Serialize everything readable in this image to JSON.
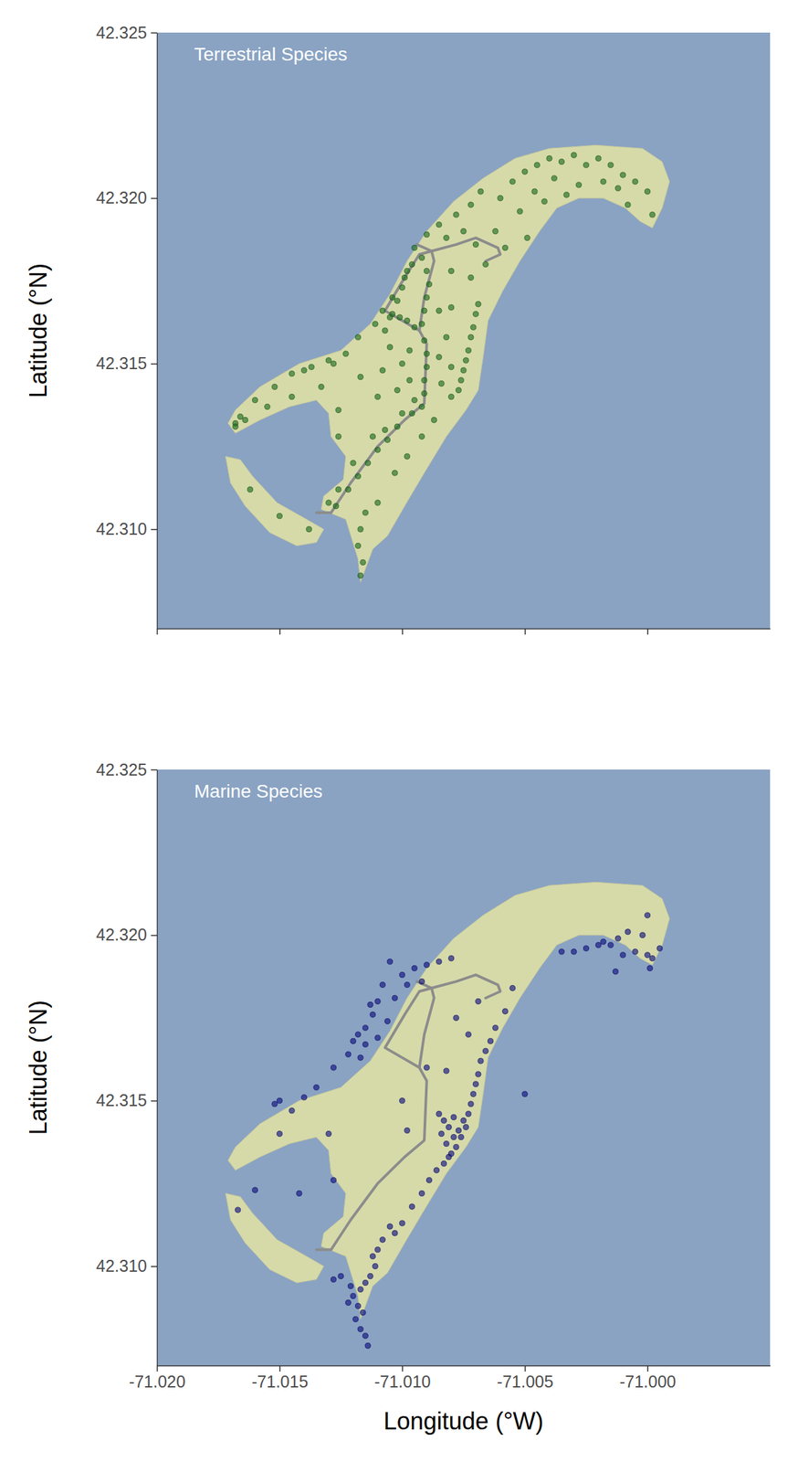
{
  "chart_data": [
    {
      "type": "scatter",
      "title": "Terrestrial Species",
      "y_label": "Latitude (°N)",
      "xlim": [
        -71.02,
        -70.995
      ],
      "ylim": [
        42.307,
        42.325
      ],
      "xticks": [
        {
          "value": -71.02,
          "label": "-71.020"
        },
        -71.015,
        {
          "value": -71.01,
          "label": "-71.010"
        },
        -71.005,
        {
          "value": -71,
          "label": "-71.000"
        }
      ],
      "yticks": [
        {
          "value": 42.31,
          "label": "42.310"
        },
        42.315,
        {
          "value": 42.32,
          "label": "42.320"
        },
        42.325
      ],
      "tick_labels": "y",
      "color": "#1a6b1a",
      "marker": "circle",
      "land": [
        {
          "x": [
            -71.004,
            -71.0021,
            -71.0002,
            -70.9994,
            -70.9991,
            -70.9994,
            -70.9998,
            -71.0003,
            -71.0009,
            -71.0018,
            -71.0028,
            -71.0037,
            -71.0044,
            -71.0052,
            -71.0059,
            -71.0065,
            -71.0067,
            -71.0069,
            -71.0074,
            -71.0082,
            -71.0091,
            -71.0099,
            -71.0106,
            -71.0112,
            -71.0115,
            -71.0117,
            -71.0118,
            -71.0123,
            -71.0133,
            -71.0132,
            -71.0124,
            -71.0123,
            -71.0129,
            -71.013,
            -71.0135,
            -71.0146,
            -71.0158,
            -71.0168,
            -71.0171,
            -71.0168,
            -71.0158,
            -71.0142,
            -71.0125,
            -71.0113,
            -71.0105,
            -71.0098,
            -71.009,
            -71.0079,
            -71.0067,
            -71.0054
          ],
          "y": [
            42.3215,
            42.3216,
            42.3215,
            42.3211,
            42.3205,
            42.3197,
            42.3191,
            42.3193,
            42.3197,
            42.32,
            42.32,
            42.3197,
            42.319,
            42.3181,
            42.3172,
            42.3163,
            42.3152,
            42.3142,
            42.3136,
            42.3128,
            42.3117,
            42.3107,
            42.3098,
            42.3094,
            42.3088,
            42.3084,
            42.3091,
            42.3103,
            42.3106,
            42.311,
            42.3115,
            42.3122,
            42.3128,
            42.3135,
            42.3139,
            42.3137,
            42.3133,
            42.3129,
            42.3132,
            42.3136,
            42.3143,
            42.315,
            42.3154,
            42.3162,
            42.3171,
            42.3181,
            42.319,
            42.3199,
            42.3206,
            42.3212
          ]
        },
        {
          "x": [
            -71.0172,
            -71.0166,
            -71.0161,
            -71.0151,
            -71.0139,
            -71.0132,
            -71.0135,
            -71.0143,
            -71.0154,
            -71.0164,
            -71.017
          ],
          "y": [
            42.3122,
            42.3121,
            42.3116,
            42.3108,
            42.3103,
            42.31,
            42.3096,
            42.3095,
            42.3099,
            42.3107,
            42.3114
          ]
        }
      ],
      "trails": [
        {
          "x": [
            -71.0135,
            -71.0129,
            -71.0121,
            -71.011,
            -71.0099,
            -71.0091,
            -71.009,
            -71.0093,
            -71.0091,
            -71.0087,
            -71.0088,
            -71.0094
          ],
          "y": [
            42.3105,
            42.3105,
            42.3114,
            42.3125,
            42.3133,
            42.3138,
            42.3156,
            42.316,
            42.317,
            42.3181,
            42.3184,
            42.3186
          ]
        },
        {
          "x": [
            -71.0093,
            -71.0107,
            -71.0099,
            -71.0093,
            -71.0088
          ],
          "y": [
            42.316,
            42.3166,
            42.3176,
            42.3183,
            42.3184
          ]
        },
        {
          "x": [
            -71.0088,
            -71.0078,
            -71.007,
            -71.0061,
            -71.006,
            -71.0066
          ],
          "y": [
            42.3184,
            42.3186,
            42.3188,
            42.3185,
            42.3183,
            42.3181
          ]
        }
      ],
      "x": [
        -71.006,
        -71.0055,
        -71.005,
        -71.0045,
        -71.004,
        -71.0035,
        -71.003,
        -71.0025,
        -71.002,
        -71.0015,
        -71.001,
        -71.0005,
        -71.0,
        -70.9998,
        -71.0008,
        -71.0012,
        -71.0018,
        -71.0028,
        -71.0038,
        -71.0046,
        -71.0052,
        -71.0042,
        -71.0033,
        -71.0062,
        -71.0058,
        -71.0049,
        -71.0068,
        -71.0072,
        -71.0078,
        -71.0085,
        -71.009,
        -71.0095,
        -71.0096,
        -71.0099,
        -71.0098,
        -71.0092,
        -71.0082,
        -71.0075,
        -71.007,
        -71.0066,
        -71.0072,
        -71.008,
        -71.0104,
        -71.0108,
        -71.0111,
        -71.0107,
        -71.0105,
        -71.0118,
        -71.0123,
        -71.013,
        -71.0137,
        -71.0145,
        -71.0152,
        -71.016,
        -71.0166,
        -71.0168,
        -71.014,
        -71.0128,
        -71.0133,
        -71.0104,
        -71.0101,
        -71.0098,
        -71.0095,
        -71.0102,
        -71.01,
        -71.009,
        -71.0089,
        -71.009,
        -71.0091,
        -71.0092,
        -71.0091,
        -71.009,
        -71.009,
        -71.0091,
        -71.0091,
        -71.0092,
        -71.007,
        -71.0071,
        -71.0072,
        -71.0073,
        -71.0074,
        -71.0075,
        -71.0076,
        -71.0077,
        -71.0069,
        -71.008,
        -71.0085,
        -71.0082,
        -71.0085,
        -71.008,
        -71.0097,
        -71.01,
        -71.0105,
        -71.0097,
        -71.0102,
        -71.0108,
        -71.0084,
        -71.008,
        -71.0095,
        -71.01,
        -71.011,
        -71.0117,
        -71.0096,
        -71.0102,
        -71.0106,
        -71.011,
        -71.0114,
        -71.0118,
        -71.0122,
        -71.0107,
        -71.0112,
        -71.0087,
        -71.0092,
        -71.0098,
        -71.0103,
        -71.011,
        -71.0115,
        -71.0117,
        -71.0118,
        -71.0116,
        -71.0117,
        -71.0127,
        -71.013,
        -71.0126,
        -71.012,
        -71.015,
        -71.0162,
        -71.0168,
        -71.0164,
        -71.0138,
        -71.0145,
        -71.0155,
        -71.0126,
        -71.0126
      ],
      "y": [
        42.32,
        42.3205,
        42.3208,
        42.321,
        42.3212,
        42.3211,
        42.3213,
        42.321,
        42.3212,
        42.321,
        42.3207,
        42.3205,
        42.3202,
        42.3195,
        42.3198,
        42.3203,
        42.3205,
        42.3204,
        42.3206,
        42.3202,
        42.3196,
        42.3199,
        42.3201,
        42.319,
        42.3185,
        42.3188,
        42.3202,
        42.3198,
        42.3195,
        42.3192,
        42.3189,
        42.3185,
        42.318,
        42.3176,
        42.3178,
        42.3182,
        42.3188,
        42.319,
        42.3186,
        42.318,
        42.3176,
        42.3178,
        42.317,
        42.3166,
        42.3162,
        42.316,
        42.3164,
        42.3158,
        42.3153,
        42.3151,
        42.3149,
        42.3147,
        42.3143,
        42.3139,
        42.3134,
        42.3132,
        42.3148,
        42.315,
        42.3143,
        42.3165,
        42.3164,
        42.3163,
        42.3161,
        42.3169,
        42.3173,
        42.3178,
        42.3174,
        42.317,
        42.3166,
        42.3162,
        42.3157,
        42.3153,
        42.3149,
        42.3145,
        42.3141,
        42.3137,
        42.3165,
        42.3161,
        42.3158,
        42.3154,
        42.3151,
        42.3148,
        42.3145,
        42.3142,
        42.3168,
        42.3167,
        42.3166,
        42.3158,
        42.3152,
        42.3149,
        42.3154,
        42.315,
        42.3155,
        42.3145,
        42.3142,
        42.3148,
        42.3144,
        42.314,
        42.3139,
        42.3135,
        42.314,
        42.3146,
        42.3135,
        42.3131,
        42.3127,
        42.3124,
        42.312,
        42.3116,
        42.3112,
        42.313,
        42.3128,
        42.3133,
        42.3128,
        42.3122,
        42.3117,
        42.3108,
        42.3105,
        42.31,
        42.3095,
        42.309,
        42.3086,
        42.3107,
        42.3108,
        42.3112,
        42.312,
        42.3104,
        42.3112,
        42.3131,
        42.3133,
        42.31,
        42.314,
        42.3137,
        42.3128,
        42.3136
      ]
    },
    {
      "type": "scatter",
      "title": "Marine Species",
      "x_label": "Longitude (°W)",
      "y_label": "Latitude (°N)",
      "xlim": [
        -71.02,
        -70.995
      ],
      "ylim": [
        42.307,
        42.325
      ],
      "xticks": [
        {
          "value": -71.02,
          "label": "-71.020"
        },
        -71.015,
        {
          "value": -71.01,
          "label": "-71.010"
        },
        -71.005,
        {
          "value": -71,
          "label": "-71.000"
        }
      ],
      "yticks": [
        {
          "value": 42.31,
          "label": "42.310"
        },
        42.315,
        {
          "value": 42.32,
          "label": "42.320"
        },
        42.325
      ],
      "color": "#0b0b80",
      "marker": "circle",
      "land": [
        {
          "x": [
            -71.004,
            -71.0021,
            -71.0002,
            -70.9994,
            -70.9991,
            -70.9994,
            -70.9998,
            -71.0003,
            -71.0009,
            -71.0018,
            -71.0028,
            -71.0037,
            -71.0044,
            -71.0052,
            -71.0059,
            -71.0065,
            -71.0067,
            -71.0069,
            -71.0074,
            -71.0082,
            -71.0091,
            -71.0099,
            -71.0106,
            -71.0112,
            -71.0115,
            -71.0117,
            -71.0118,
            -71.0123,
            -71.0133,
            -71.0132,
            -71.0124,
            -71.0123,
            -71.0129,
            -71.013,
            -71.0135,
            -71.0146,
            -71.0158,
            -71.0168,
            -71.0171,
            -71.0168,
            -71.0158,
            -71.0142,
            -71.0125,
            -71.0113,
            -71.0105,
            -71.0098,
            -71.009,
            -71.0079,
            -71.0067,
            -71.0054
          ],
          "y": [
            42.3215,
            42.3216,
            42.3215,
            42.3211,
            42.3205,
            42.3197,
            42.3191,
            42.3193,
            42.3197,
            42.32,
            42.32,
            42.3197,
            42.319,
            42.3181,
            42.3172,
            42.3163,
            42.3152,
            42.3142,
            42.3136,
            42.3128,
            42.3117,
            42.3107,
            42.3098,
            42.3094,
            42.3088,
            42.3084,
            42.3091,
            42.3103,
            42.3106,
            42.311,
            42.3115,
            42.3122,
            42.3128,
            42.3135,
            42.3139,
            42.3137,
            42.3133,
            42.3129,
            42.3132,
            42.3136,
            42.3143,
            42.315,
            42.3154,
            42.3162,
            42.3171,
            42.3181,
            42.319,
            42.3199,
            42.3206,
            42.3212
          ]
        },
        {
          "x": [
            -71.0172,
            -71.0166,
            -71.0161,
            -71.0151,
            -71.0139,
            -71.0132,
            -71.0135,
            -71.0143,
            -71.0154,
            -71.0164,
            -71.017
          ],
          "y": [
            42.3122,
            42.3121,
            42.3116,
            42.3108,
            42.3103,
            42.31,
            42.3096,
            42.3095,
            42.3099,
            42.3107,
            42.3114
          ]
        }
      ],
      "trails": [
        {
          "x": [
            -71.0135,
            -71.0129,
            -71.0121,
            -71.011,
            -71.0099,
            -71.0091,
            -71.009,
            -71.0093,
            -71.0091,
            -71.0087,
            -71.0088,
            -71.0094
          ],
          "y": [
            42.3105,
            42.3105,
            42.3114,
            42.3125,
            42.3133,
            42.3138,
            42.3156,
            42.316,
            42.317,
            42.3181,
            42.3184,
            42.3186
          ]
        },
        {
          "x": [
            -71.0093,
            -71.0107,
            -71.0099,
            -71.0093,
            -71.0088
          ],
          "y": [
            42.316,
            42.3166,
            42.3176,
            42.3183,
            42.3184
          ]
        },
        {
          "x": [
            -71.0088,
            -71.0078,
            -71.007,
            -71.0061,
            -71.006,
            -71.0066
          ],
          "y": [
            42.3184,
            42.3186,
            42.3188,
            42.3185,
            42.3183,
            42.3181
          ]
        }
      ],
      "x": [
        -71.0105,
        -71.01,
        -71.0095,
        -71.009,
        -71.0085,
        -71.008,
        -71.0108,
        -71.011,
        -71.0112,
        -71.0115,
        -71.0118,
        -71.012,
        -71.0115,
        -71.011,
        -71.0106,
        -71.0113,
        -71.0122,
        -71.0117,
        -71.0103,
        -71.0098,
        -71.0092,
        -71.0128,
        -71.0135,
        -71.014,
        -71.015,
        -71.0152,
        -71.0145,
        -71.0068,
        -71.0069,
        -71.007,
        -71.0071,
        -71.0072,
        -71.0073,
        -71.0075,
        -71.0077,
        -71.0079,
        -71.0081,
        -71.0083,
        -71.0084,
        -71.0082,
        -71.008,
        -71.0078,
        -71.0076,
        -71.0074,
        -71.0085,
        -71.0079,
        -71.0081,
        -71.0083,
        -71.0086,
        -71.0089,
        -71.0092,
        -71.0096,
        -71.01,
        -71.0103,
        -71.0066,
        -71.0064,
        -71.0062,
        -71.0073,
        -71.0069,
        -71.0058,
        -71.0055,
        -71.005,
        -71.009,
        -71.0082,
        -71.01,
        -71.0098,
        -71.0078,
        -71.003,
        -71.0025,
        -71.002,
        -71.0018,
        -71.0015,
        -71.0012,
        -71.001,
        -71.0005,
        -71.0,
        -70.9998,
        -70.9995,
        -71.0002,
        -71.0,
        -71.0008,
        -71.0035,
        -71.0013,
        -70.9999,
        -71.0105,
        -71.0108,
        -71.011,
        -71.0112,
        -71.0111,
        -71.0113,
        -71.0115,
        -71.0117,
        -71.012,
        -71.0122,
        -71.0118,
        -71.0116,
        -71.0119,
        -71.0117,
        -71.0115,
        -71.0114,
        -71.0121,
        -71.0125,
        -71.0128,
        -71.013,
        -71.0128,
        -71.016,
        -71.0167,
        -71.0142,
        -71.015
      ],
      "y": [
        42.3192,
        42.3188,
        42.319,
        42.3191,
        42.3192,
        42.3193,
        42.3185,
        42.318,
        42.3176,
        42.3172,
        42.317,
        42.3168,
        42.3167,
        42.3169,
        42.3174,
        42.3179,
        42.3164,
        42.3163,
        42.3181,
        42.3185,
        42.3186,
        42.316,
        42.3154,
        42.3151,
        42.315,
        42.3149,
        42.3147,
        42.3162,
        42.3158,
        42.3155,
        42.3152,
        42.3149,
        42.3146,
        42.3144,
        42.3141,
        42.3139,
        42.3142,
        42.3144,
        42.314,
        42.3137,
        42.3134,
        42.3136,
        42.3139,
        42.3142,
        42.3146,
        42.3145,
        42.3133,
        42.3131,
        42.3129,
        42.3126,
        42.3122,
        42.3118,
        42.3113,
        42.311,
        42.3165,
        42.3168,
        42.3172,
        42.317,
        42.318,
        42.3177,
        42.3184,
        42.3152,
        42.316,
        42.3159,
        42.315,
        42.3141,
        42.3175,
        42.3195,
        42.3196,
        42.3197,
        42.3198,
        42.3197,
        42.3199,
        42.3194,
        42.3195,
        42.3194,
        42.3193,
        42.3196,
        42.32,
        42.3206,
        42.3201,
        42.3195,
        42.3189,
        42.319,
        42.3112,
        42.3108,
        42.3105,
        42.3103,
        42.31,
        42.3097,
        42.3095,
        42.3093,
        42.3091,
        42.3089,
        42.3088,
        42.3086,
        42.3084,
        42.3081,
        42.3079,
        42.3076,
        42.3094,
        42.3097,
        42.3096,
        42.314,
        42.3126,
        42.3123,
        42.3117,
        42.3122,
        42.314
      ]
    }
  ]
}
